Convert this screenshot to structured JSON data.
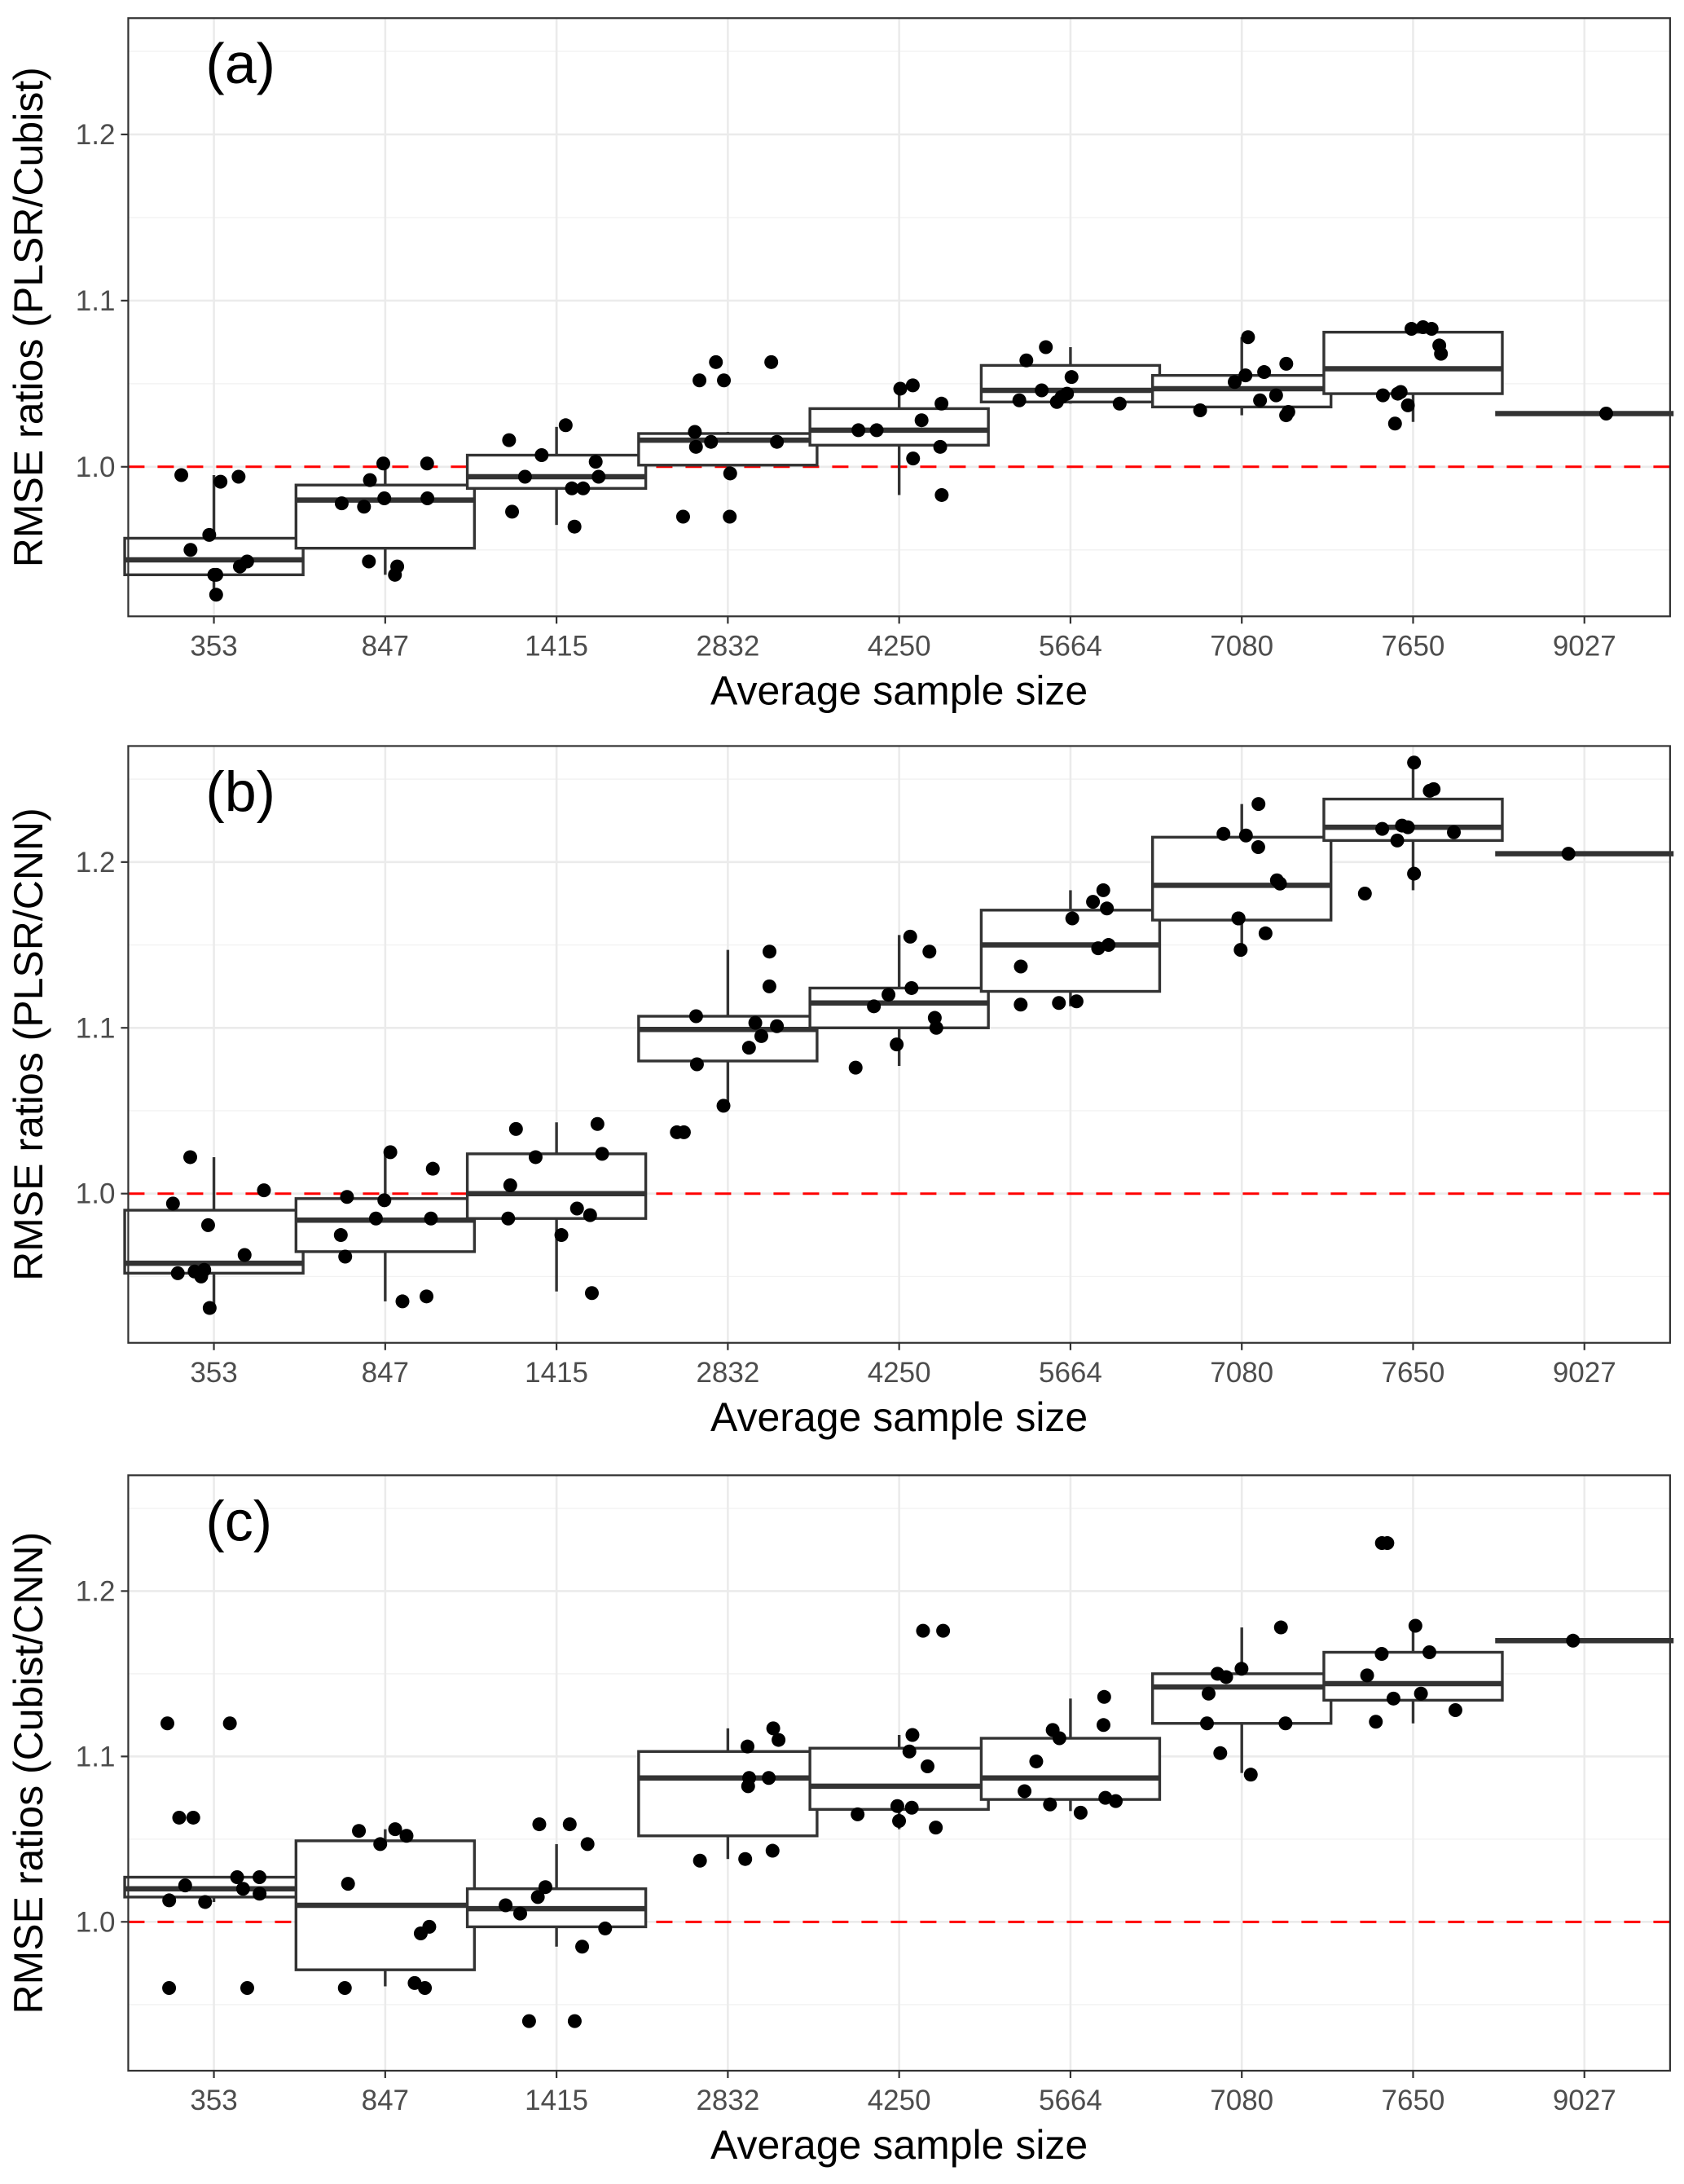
{
  "chart_data": [
    {
      "type": "box",
      "panel_label": "(a)",
      "xlabel": "Average sample size",
      "ylabel": "RMSE ratios (PLSR/Cubist)",
      "categories": [
        "353",
        "847",
        "1415",
        "2832",
        "4250",
        "5664",
        "7080",
        "7650",
        "9027"
      ],
      "y_ticks": [
        "1.0",
        "1.1",
        "1.2"
      ],
      "ylim": [
        0.91,
        1.27
      ],
      "reference_line": {
        "y": 1.0,
        "color": "#ff0000",
        "style": "dashed"
      },
      "grid": true,
      "boxes": [
        {
          "q1": 0.935,
          "median": 0.944,
          "q3": 0.957,
          "whisker_low": 0.924,
          "whisker_high": 0.995
        },
        {
          "q1": 0.951,
          "median": 0.98,
          "q3": 0.989,
          "whisker_low": 0.935,
          "whisker_high": 1.002
        },
        {
          "q1": 0.987,
          "median": 0.994,
          "q3": 1.007,
          "whisker_low": 0.965,
          "whisker_high": 1.024
        },
        {
          "q1": 1.001,
          "median": 1.016,
          "q3": 1.02,
          "whisker_low": 0.996,
          "whisker_high": 1.021
        },
        {
          "q1": 1.013,
          "median": 1.022,
          "q3": 1.035,
          "whisker_low": 0.983,
          "whisker_high": 1.049
        },
        {
          "q1": 1.039,
          "median": 1.046,
          "q3": 1.061,
          "whisker_low": 1.038,
          "whisker_high": 1.072
        },
        {
          "q1": 1.036,
          "median": 1.047,
          "q3": 1.055,
          "whisker_low": 1.031,
          "whisker_high": 1.078
        },
        {
          "q1": 1.044,
          "median": 1.059,
          "q3": 1.081,
          "whisker_low": 1.027,
          "whisker_high": 1.084
        },
        {
          "q1": 1.032,
          "median": 1.032,
          "q3": 1.032,
          "whisker_low": 1.032,
          "whisker_high": 1.032
        }
      ],
      "points": [
        [
          0.995,
          0.994,
          0.991,
          0.959,
          0.95,
          0.943,
          0.94,
          0.935,
          0.935,
          0.923
        ],
        [
          1.002,
          1.002,
          0.992,
          0.981,
          0.978,
          0.981,
          0.976,
          0.943,
          0.94,
          0.935
        ],
        [
          1.025,
          1.016,
          1.007,
          1.003,
          0.994,
          0.994,
          0.987,
          0.987,
          0.973,
          0.964
        ],
        [
          1.063,
          1.063,
          1.052,
          1.052,
          1.021,
          1.015,
          1.015,
          1.012,
          0.996,
          0.97,
          0.97
        ],
        [
          1.049,
          1.047,
          1.038,
          1.028,
          1.022,
          1.022,
          1.012,
          1.005,
          0.983
        ],
        [
          1.072,
          1.064,
          1.054,
          1.046,
          1.044,
          1.042,
          1.04,
          1.039,
          1.038
        ],
        [
          1.078,
          1.062,
          1.057,
          1.055,
          1.051,
          1.043,
          1.04,
          1.034,
          1.033,
          1.031
        ],
        [
          1.084,
          1.083,
          1.083,
          1.073,
          1.068,
          1.045,
          1.044,
          1.043,
          1.037,
          1.026
        ],
        [
          1.032
        ]
      ]
    },
    {
      "type": "box",
      "panel_label": "(b)",
      "xlabel": "Average sample size",
      "ylabel": "RMSE ratios (PLSR/CNN)",
      "categories": [
        "353",
        "847",
        "1415",
        "2832",
        "4250",
        "5664",
        "7080",
        "7650",
        "9027"
      ],
      "y_ticks": [
        "1.0",
        "1.1",
        "1.2"
      ],
      "ylim": [
        0.91,
        1.27
      ],
      "reference_line": {
        "y": 1.0,
        "color": "#ff0000",
        "style": "dashed"
      },
      "grid": true,
      "boxes": [
        {
          "q1": 0.952,
          "median": 0.958,
          "q3": 0.99,
          "whisker_low": 0.931,
          "whisker_high": 1.022
        },
        {
          "q1": 0.965,
          "median": 0.984,
          "q3": 0.997,
          "whisker_low": 0.935,
          "whisker_high": 1.025
        },
        {
          "q1": 0.985,
          "median": 1.0,
          "q3": 1.024,
          "whisker_low": 0.941,
          "whisker_high": 1.043
        },
        {
          "q1": 1.08,
          "median": 1.099,
          "q3": 1.107,
          "whisker_low": 1.053,
          "whisker_high": 1.147
        },
        {
          "q1": 1.1,
          "median": 1.115,
          "q3": 1.124,
          "whisker_low": 1.077,
          "whisker_high": 1.156
        },
        {
          "q1": 1.122,
          "median": 1.15,
          "q3": 1.171,
          "whisker_low": 1.113,
          "whisker_high": 1.183
        },
        {
          "q1": 1.165,
          "median": 1.186,
          "q3": 1.215,
          "whisker_low": 1.147,
          "whisker_high": 1.235
        },
        {
          "q1": 1.213,
          "median": 1.221,
          "q3": 1.238,
          "whisker_low": 1.183,
          "whisker_high": 1.26
        },
        {
          "q1": 1.205,
          "median": 1.205,
          "q3": 1.205,
          "whisker_low": 1.205,
          "whisker_high": 1.205
        }
      ],
      "points": [
        [
          1.022,
          1.002,
          0.994,
          0.981,
          0.963,
          0.954,
          0.953,
          0.952,
          0.95,
          0.931
        ],
        [
          1.025,
          1.015,
          0.998,
          0.996,
          0.985,
          0.985,
          0.975,
          0.962,
          0.938,
          0.935
        ],
        [
          1.042,
          1.039,
          1.024,
          1.022,
          1.005,
          0.991,
          0.987,
          0.985,
          0.975,
          0.94
        ],
        [
          1.146,
          1.125,
          1.107,
          1.103,
          1.101,
          1.095,
          1.088,
          1.078,
          1.053,
          1.037,
          1.037
        ],
        [
          1.155,
          1.146,
          1.124,
          1.12,
          1.113,
          1.106,
          1.1,
          1.09,
          1.076
        ],
        [
          1.183,
          1.176,
          1.172,
          1.166,
          1.15,
          1.148,
          1.137,
          1.116,
          1.115,
          1.114
        ],
        [
          1.235,
          1.217,
          1.216,
          1.209,
          1.189,
          1.187,
          1.166,
          1.166,
          1.157,
          1.147
        ],
        [
          1.26,
          1.244,
          1.243,
          1.222,
          1.221,
          1.22,
          1.218,
          1.213,
          1.193,
          1.181
        ],
        [
          1.205
        ]
      ]
    },
    {
      "type": "box",
      "panel_label": "(c)",
      "xlabel": "Average sample size",
      "ylabel": "RMSE ratios (Cubist/CNN)",
      "categories": [
        "353",
        "847",
        "1415",
        "2832",
        "4250",
        "5664",
        "7080",
        "7650",
        "9027"
      ],
      "y_ticks": [
        "1.0",
        "1.1",
        "1.2"
      ],
      "ylim": [
        0.91,
        1.27
      ],
      "reference_line": {
        "y": 1.0,
        "color": "#ff0000",
        "style": "dashed"
      },
      "grid": true,
      "boxes": [
        {
          "q1": 1.015,
          "median": 1.02,
          "q3": 1.027,
          "whisker_low": 1.012,
          "whisker_high": 1.027
        },
        {
          "q1": 0.971,
          "median": 1.01,
          "q3": 1.049,
          "whisker_low": 0.961,
          "whisker_high": 1.056
        },
        {
          "q1": 0.997,
          "median": 1.008,
          "q3": 1.02,
          "whisker_low": 0.985,
          "whisker_high": 1.047
        },
        {
          "q1": 1.052,
          "median": 1.087,
          "q3": 1.103,
          "whisker_low": 1.038,
          "whisker_high": 1.117
        },
        {
          "q1": 1.068,
          "median": 1.082,
          "q3": 1.105,
          "whisker_low": 1.056,
          "whisker_high": 1.113
        },
        {
          "q1": 1.074,
          "median": 1.087,
          "q3": 1.111,
          "whisker_low": 1.067,
          "whisker_high": 1.135
        },
        {
          "q1": 1.12,
          "median": 1.142,
          "q3": 1.15,
          "whisker_low": 1.09,
          "whisker_high": 1.178
        },
        {
          "q1": 1.134,
          "median": 1.144,
          "q3": 1.163,
          "whisker_low": 1.12,
          "whisker_high": 1.179
        },
        {
          "q1": 1.17,
          "median": 1.17,
          "q3": 1.17,
          "whisker_low": 1.17,
          "whisker_high": 1.17
        }
      ],
      "points": [
        [
          1.12,
          1.12,
          1.063,
          1.063,
          1.027,
          1.027,
          1.022,
          1.02,
          1.017,
          1.013,
          1.012,
          0.96,
          0.96
        ],
        [
          1.056,
          1.055,
          1.052,
          1.047,
          1.023,
          0.997,
          0.993,
          0.963,
          0.96,
          0.96
        ],
        [
          1.059,
          1.059,
          1.047,
          1.021,
          1.015,
          1.01,
          1.005,
          0.996,
          0.985,
          0.94,
          0.94
        ],
        [
          1.117,
          1.11,
          1.106,
          1.087,
          1.087,
          1.082,
          1.043,
          1.038,
          1.037
        ],
        [
          1.176,
          1.176,
          1.113,
          1.103,
          1.094,
          1.07,
          1.069,
          1.065,
          1.061,
          1.057
        ],
        [
          1.136,
          1.119,
          1.116,
          1.111,
          1.097,
          1.079,
          1.075,
          1.073,
          1.071,
          1.066
        ],
        [
          1.178,
          1.153,
          1.15,
          1.148,
          1.138,
          1.12,
          1.12,
          1.102,
          1.089
        ],
        [
          1.229,
          1.229,
          1.179,
          1.163,
          1.162,
          1.149,
          1.138,
          1.135,
          1.128,
          1.121
        ],
        [
          1.17
        ]
      ]
    }
  ]
}
